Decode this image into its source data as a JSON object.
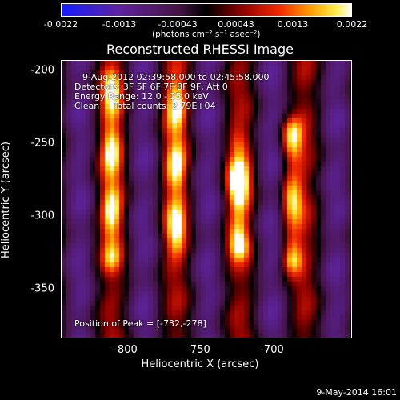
{
  "chart_data": {
    "type": "heatmap",
    "title": "Reconstructed RHESSI Image",
    "xlabel": "Heliocentric X (arcsec)",
    "ylabel": "Heliocentric Y (arcsec)",
    "xlim": [
      -845,
      -660
    ],
    "ylim": [
      -388,
      -188
    ],
    "x_ticks": [
      -800,
      -750,
      -700
    ],
    "y_ticks": [
      -200,
      -250,
      -300,
      -350
    ],
    "colorbar": {
      "ticks": [
        "-0.0022",
        "-0.0013",
        "-0.00043",
        "0.00043",
        "0.0013",
        "0.0022"
      ],
      "range": [
        -0.0022,
        0.0022
      ],
      "units_text": "(photons cm⁻² s⁻¹ asec⁻²)"
    },
    "annotations": [
      "9-Aug-2012 02:39:58.000 to 02:45:58.000",
      "Detectors: 3F 5F 6F 7F 8F 9F, Att 0",
      "Energy Range: 12.0 - 25.0 keV",
      "Clean     Total counts: 2.79E+04"
    ],
    "peak_label": "Position of Peak = [-732,-278]",
    "peak": {
      "x": -732,
      "y": -278
    },
    "bright_streaks": [
      {
        "x": -813,
        "y_range": [
          -325,
          -205
        ]
      },
      {
        "x": -772,
        "y_range": [
          -320,
          -210
        ]
      },
      {
        "x": -732,
        "y_range": [
          -320,
          -255
        ]
      },
      {
        "x": -698,
        "y_range": [
          -330,
          -240
        ]
      }
    ]
  },
  "footer": "9-May-2014 16:01"
}
